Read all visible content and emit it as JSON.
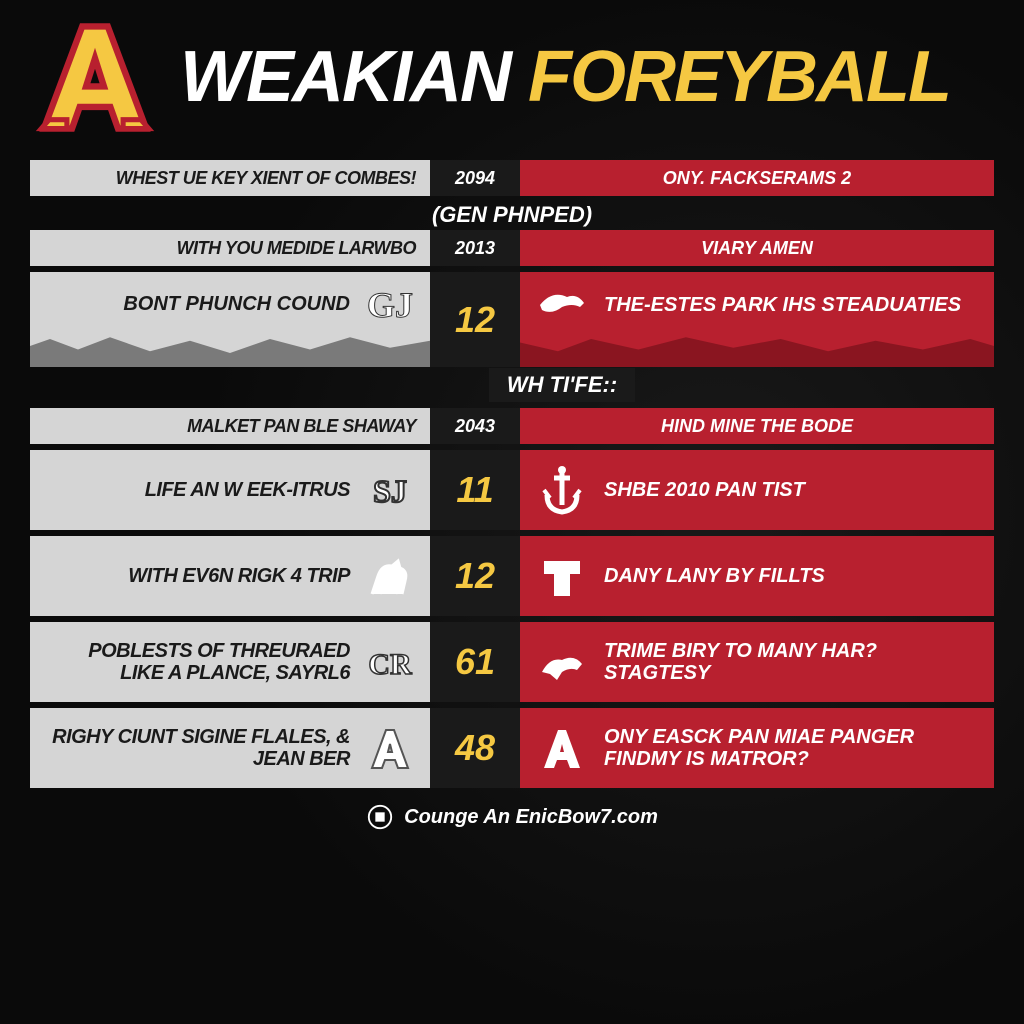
{
  "colors": {
    "background": "#0a0a0a",
    "gold": "#f5c842",
    "red": "#b8202f",
    "red_dark": "#8a1520",
    "grey_light": "#d5d5d5",
    "grey_dark": "#7a7a7a",
    "black": "#1a1a1a",
    "white": "#ffffff"
  },
  "header": {
    "title_white": "WEAKIAN",
    "title_gold": "FOREYBALL"
  },
  "rows": [
    {
      "type": "slim",
      "left": "WHEST UE KEY XIENT OF COMBES!",
      "mid": "2094",
      "right": "ONY. FACKSERAMS 2",
      "right_center": true
    },
    {
      "type": "section",
      "label": "(GEN PHNPED)"
    },
    {
      "type": "slim",
      "left": "WITH YOU MEDIDE LARWBO",
      "mid": "2013",
      "right": "VIARY AMEN",
      "right_center": true
    },
    {
      "type": "torn",
      "left": "BONT PHUNCH COUND",
      "mid": "12",
      "right": "THE-ESTES PARK IHS STEADUATIES",
      "left_logo": "gj",
      "right_logo": "dragon"
    },
    {
      "type": "wh",
      "label": "WH TI'FE::"
    },
    {
      "type": "slim",
      "left": "MALKET PAN BLE SHAWAY",
      "mid": "2043",
      "right": "HIND MINE THE BODE",
      "right_center": true
    },
    {
      "type": "tall",
      "left": "LIFE AN W EEK-ITRUS",
      "mid": "11",
      "right": "SHBE 2010 PAN TIST",
      "left_logo": "sj",
      "right_logo": "anchor"
    },
    {
      "type": "tall",
      "left": "WITH EV6N RIGK 4 TRIP",
      "mid": "12",
      "right": "DANY LANY BY FILLTS",
      "left_logo": "horse",
      "right_logo": "t"
    },
    {
      "type": "tall",
      "left": "POBLESTS OF THREURAED LIKE A PLANCE, SAYRL6",
      "mid": "61",
      "right": "TRIME BIRY TO MANY HAR? STAGTESY",
      "left_logo": "cr",
      "right_logo": "panther"
    },
    {
      "type": "tall",
      "left": "RIGHY CIUNT SIGINE FLALES, & JEAN BER",
      "mid": "48",
      "right": "ONY EASCK PAN MIAE PANGER FINDMY IS MATROR?",
      "left_logo": "a",
      "right_logo": "a2"
    }
  ],
  "footer": "Counge An EnicBow7.com"
}
